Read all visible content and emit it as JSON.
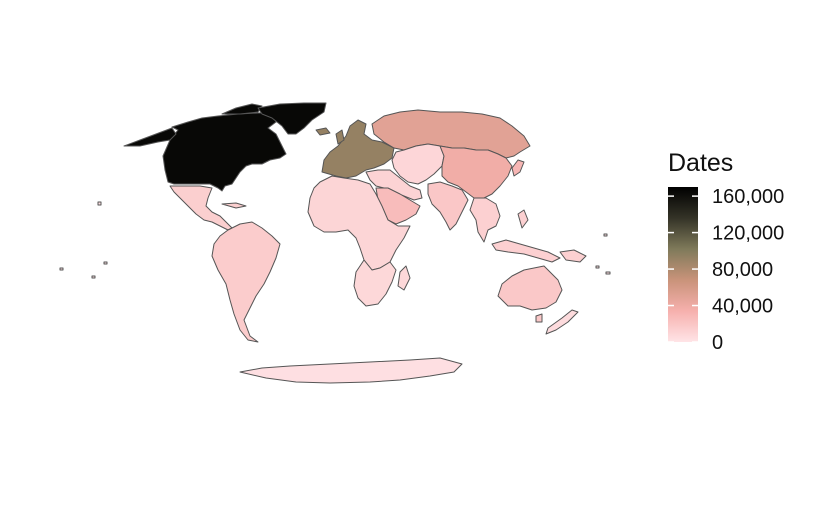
{
  "legend": {
    "title": "Dates",
    "ticks": [
      {
        "label": "160,000",
        "value": 160000
      },
      {
        "label": "120,000",
        "value": 120000
      },
      {
        "label": "80,000",
        "value": 80000
      },
      {
        "label": "40,000",
        "value": 40000
      },
      {
        "label": "0",
        "value": 0
      }
    ],
    "range": [
      0,
      170000
    ],
    "colors": [
      "#ffe4e7",
      "#f6b0ad",
      "#c9937a",
      "#7f7a5a",
      "#343327",
      "#000000"
    ]
  },
  "map": {
    "projection": "pseudo-cylindrical world (Robinson-like)",
    "border_color": "#555555",
    "background": "#ffffff",
    "regions": [
      {
        "name": "North America (USA, Canada)",
        "value": 165000
      },
      {
        "name": "Greenland",
        "value": 165000
      },
      {
        "name": "Mexico & Central America",
        "value": 14000
      },
      {
        "name": "South America",
        "value": 16000
      },
      {
        "name": "Europe",
        "value": 92000
      },
      {
        "name": "Russia",
        "value": 50000
      },
      {
        "name": "China",
        "value": 38000
      },
      {
        "name": "Central Asia",
        "value": 9000
      },
      {
        "name": "Middle East",
        "value": 11000
      },
      {
        "name": "Arabian Peninsula",
        "value": 26000
      },
      {
        "name": "Africa",
        "value": 10000
      },
      {
        "name": "Southern Africa",
        "value": 8000
      },
      {
        "name": "India",
        "value": 19000
      },
      {
        "name": "Southeast Asia",
        "value": 13000
      },
      {
        "name": "Japan",
        "value": 30000
      },
      {
        "name": "Australia",
        "value": 18000
      },
      {
        "name": "New Zealand",
        "value": 6000
      },
      {
        "name": "Antarctica",
        "value": 3000
      }
    ]
  }
}
